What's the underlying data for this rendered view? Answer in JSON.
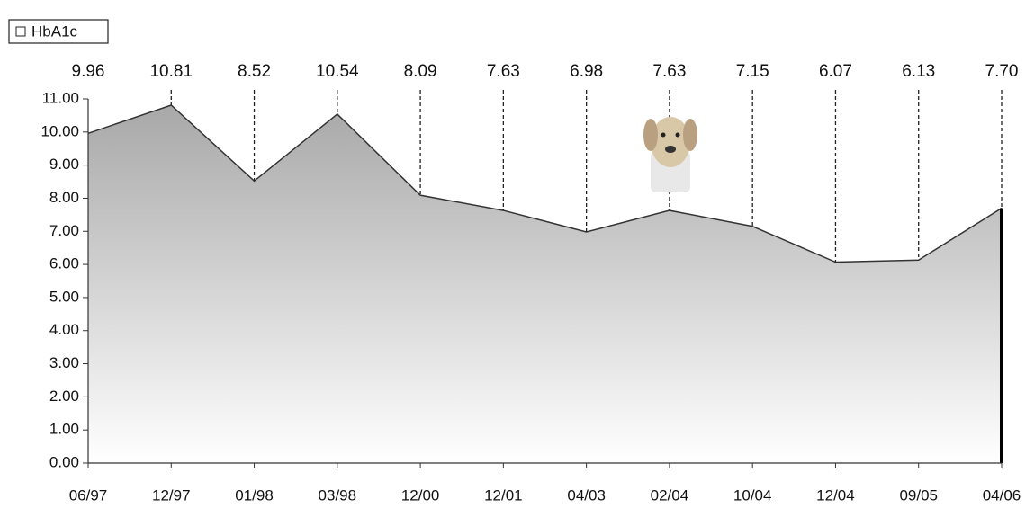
{
  "chart_data": {
    "type": "area",
    "legend": "HbA1c",
    "categories": [
      "06/97",
      "12/97",
      "01/98",
      "03/98",
      "12/00",
      "12/01",
      "04/03",
      "02/04",
      "10/04",
      "12/04",
      "09/05",
      "04/06"
    ],
    "values": [
      9.96,
      10.81,
      8.52,
      10.54,
      8.09,
      7.63,
      6.98,
      7.63,
      7.15,
      6.07,
      6.13,
      7.7
    ],
    "value_labels": [
      "9.96",
      "10.81",
      "8.52",
      "10.54",
      "8.09",
      "7.63",
      "6.98",
      "7.63",
      "7.15",
      "6.07",
      "6.13",
      "7.70"
    ],
    "color": "#a8a8a8",
    "ylim": [
      0,
      11
    ],
    "yticks": [
      {
        "value": 0,
        "label": "0.00"
      },
      {
        "value": 1,
        "label": "1.00"
      },
      {
        "value": 2,
        "label": "2.00"
      },
      {
        "value": 3,
        "label": "3.00"
      },
      {
        "value": 4,
        "label": "4.00"
      },
      {
        "value": 5,
        "label": "5.00"
      },
      {
        "value": 6,
        "label": "6.00"
      },
      {
        "value": 7,
        "label": "7.00"
      },
      {
        "value": 8,
        "label": "8.00"
      },
      {
        "value": 9,
        "label": "9.00"
      },
      {
        "value": 10,
        "label": "10.00"
      },
      {
        "value": 11,
        "label": "11.00"
      }
    ]
  }
}
